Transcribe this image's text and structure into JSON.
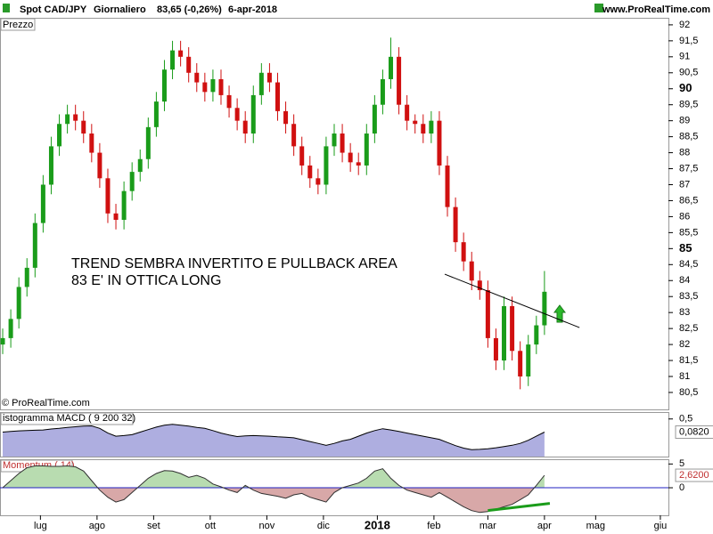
{
  "header": {
    "symbol": "Spot CAD/JPY",
    "period": "Giornaliero",
    "quote": "83,65 (-0,26%)",
    "date": "6-apr-2018",
    "site": "www.ProRealTime.com"
  },
  "chart_data": [
    {
      "type": "candlestick",
      "title": "Prezzo",
      "copyright": "© ProRealTime.com",
      "annotations": [
        "TREND SEMBRA INVERTITO E PULLBACK AREA",
        "83 E' IN OTTICA LONG"
      ],
      "up_color": "#1a9c1a",
      "down_color": "#d01010",
      "x": [
        0,
        3,
        6,
        9,
        12,
        15,
        18,
        21,
        24,
        27,
        30,
        33,
        36,
        39,
        42,
        45,
        48,
        51,
        54,
        57,
        60,
        63,
        66,
        69,
        72,
        75,
        78,
        81,
        84,
        87,
        90,
        93,
        96,
        99,
        102,
        105,
        108,
        111,
        114,
        117,
        120,
        123,
        126,
        129,
        132,
        135,
        138,
        141,
        144,
        147,
        150,
        153,
        156,
        159,
        162,
        165,
        168,
        171,
        174,
        177,
        180,
        183,
        186,
        189,
        192,
        195,
        198,
        201
      ],
      "open": [
        82.0,
        82.2,
        82.8,
        83.8,
        84.4,
        85.8,
        87.0,
        88.2,
        88.9,
        89.2,
        89.0,
        88.6,
        88.0,
        87.2,
        86.1,
        85.9,
        86.8,
        87.4,
        87.8,
        88.8,
        89.6,
        90.6,
        91.2,
        91.0,
        90.5,
        90.2,
        89.9,
        90.3,
        89.8,
        89.4,
        89.0,
        88.6,
        89.8,
        90.5,
        90.2,
        89.3,
        88.9,
        88.2,
        87.6,
        87.2,
        87.0,
        88.2,
        88.6,
        88.0,
        87.7,
        87.6,
        88.6,
        89.5,
        90.3,
        91.0,
        89.5,
        89.0,
        88.9,
        88.6,
        89.0,
        87.6,
        86.3,
        85.2,
        84.6,
        84.0,
        83.7,
        82.2,
        81.5,
        83.2,
        81.8,
        81.0,
        82.0,
        82.6
      ],
      "close": [
        82.2,
        82.8,
        83.8,
        84.4,
        85.8,
        87.0,
        88.2,
        88.9,
        89.2,
        89.0,
        88.6,
        88.0,
        87.2,
        86.1,
        85.9,
        86.8,
        87.4,
        87.8,
        88.8,
        89.6,
        90.6,
        91.2,
        91.0,
        90.5,
        90.2,
        89.9,
        90.3,
        89.8,
        89.4,
        89.0,
        88.6,
        89.8,
        90.5,
        90.2,
        89.3,
        88.9,
        88.2,
        87.6,
        87.2,
        87.0,
        88.2,
        88.6,
        88.0,
        87.7,
        87.6,
        88.6,
        89.5,
        90.3,
        91.0,
        89.5,
        89.0,
        88.9,
        88.6,
        89.0,
        87.6,
        86.3,
        85.2,
        84.6,
        84.0,
        83.7,
        82.2,
        81.5,
        83.2,
        81.8,
        81.0,
        82.0,
        82.6,
        83.65
      ],
      "high": [
        82.5,
        83.1,
        84.1,
        84.7,
        86.1,
        87.3,
        88.5,
        89.2,
        89.5,
        89.5,
        89.3,
        88.9,
        88.3,
        87.5,
        86.4,
        87.1,
        87.7,
        88.1,
        89.1,
        89.9,
        90.9,
        91.5,
        91.5,
        91.3,
        90.8,
        90.5,
        90.6,
        90.6,
        90.1,
        89.7,
        89.3,
        90.1,
        90.8,
        90.8,
        90.5,
        89.6,
        89.2,
        88.5,
        87.9,
        87.5,
        88.5,
        88.9,
        88.9,
        88.3,
        88.0,
        88.9,
        89.8,
        90.6,
        91.6,
        91.3,
        89.8,
        89.2,
        89.2,
        89.3,
        89.3,
        87.9,
        86.6,
        85.5,
        84.9,
        84.3,
        84.0,
        82.5,
        83.5,
        83.5,
        82.1,
        82.3,
        82.9,
        84.3
      ],
      "low": [
        81.7,
        81.9,
        82.5,
        83.5,
        84.1,
        85.5,
        86.7,
        87.9,
        88.6,
        88.7,
        88.3,
        87.7,
        86.9,
        85.8,
        85.6,
        85.6,
        86.5,
        87.1,
        87.5,
        88.5,
        89.3,
        90.3,
        90.7,
        90.2,
        89.9,
        89.6,
        89.6,
        89.5,
        89.1,
        88.7,
        88.3,
        88.3,
        89.5,
        89.9,
        89.0,
        88.6,
        87.9,
        87.3,
        86.9,
        86.7,
        86.7,
        87.9,
        87.7,
        87.4,
        87.3,
        87.3,
        88.3,
        89.2,
        90.0,
        89.2,
        88.7,
        88.6,
        88.3,
        88.3,
        87.3,
        86.0,
        84.9,
        84.3,
        83.7,
        83.4,
        81.9,
        81.2,
        81.2,
        81.5,
        80.6,
        80.7,
        81.7,
        82.3
      ],
      "trendline": {
        "x": [
          164,
          214
        ],
        "y": [
          84.2,
          82.53
        ]
      },
      "xlim": [
        -1,
        247
      ],
      "xticks": [
        {
          "value": 14,
          "label": "lug"
        },
        {
          "value": 35,
          "label": "ago"
        },
        {
          "value": 56,
          "label": "set"
        },
        {
          "value": 77,
          "label": "ott"
        },
        {
          "value": 98,
          "label": "nov"
        },
        {
          "value": 119,
          "label": "dic"
        },
        139,
        {
          "value": 160,
          "label": "feb"
        },
        {
          "value": 180,
          "label": "mar"
        },
        {
          "value": 201,
          "label": "apr"
        },
        {
          "value": 220,
          "label": "mag"
        },
        {
          "value": 244,
          "label": "giu"
        }
      ],
      "xtick_labels": {
        "139": "2018"
      },
      "ylim": [
        79.97,
        92.22
      ],
      "yticks": [
        {
          "value": 80.5,
          "label": "80,5"
        },
        81,
        {
          "value": 81.5,
          "label": "81,5"
        },
        82,
        {
          "value": 82.5,
          "label": "82,5"
        },
        83,
        {
          "value": 83.5,
          "label": "83,5"
        },
        84,
        {
          "value": 84.5,
          "label": "84,5"
        },
        85,
        {
          "value": 85.5,
          "label": "85,5"
        },
        86,
        {
          "value": 86.5,
          "label": "86,5"
        },
        87,
        {
          "value": 87.5,
          "label": "87,5"
        },
        88,
        {
          "value": 88.5,
          "label": "88,5"
        },
        89,
        {
          "value": 89.5,
          "label": "89,5"
        },
        90,
        {
          "value": 90.5,
          "label": "90,5"
        },
        91,
        {
          "value": 91.5,
          "label": "91,5"
        },
        92
      ]
    },
    {
      "type": "area",
      "title": "istogramma MACD ( 9 200 32)",
      "color": "#9a9ad8",
      "line_color": "#000000",
      "x": [
        0,
        3,
        6,
        9,
        12,
        15,
        18,
        21,
        24,
        27,
        30,
        33,
        36,
        39,
        42,
        45,
        48,
        51,
        54,
        57,
        60,
        63,
        66,
        69,
        72,
        75,
        78,
        81,
        84,
        87,
        90,
        93,
        96,
        99,
        102,
        105,
        108,
        111,
        114,
        117,
        120,
        123,
        126,
        129,
        132,
        135,
        138,
        141,
        144,
        147,
        150,
        153,
        156,
        159,
        162,
        165,
        168,
        171,
        174,
        177,
        180,
        183,
        186,
        189,
        192,
        195,
        198,
        201
      ],
      "values": [
        0.08,
        0.1,
        0.12,
        0.13,
        0.14,
        0.15,
        0.18,
        0.2,
        0.23,
        0.25,
        0.27,
        0.28,
        0.2,
        0.05,
        -0.05,
        -0.03,
        0.0,
        0.08,
        0.16,
        0.24,
        0.3,
        0.33,
        0.3,
        0.27,
        0.23,
        0.2,
        0.13,
        0.05,
        -0.01,
        -0.06,
        -0.04,
        -0.03,
        -0.04,
        -0.05,
        -0.07,
        -0.08,
        -0.1,
        -0.16,
        -0.22,
        -0.28,
        -0.34,
        -0.28,
        -0.2,
        -0.15,
        -0.05,
        0.05,
        0.13,
        0.19,
        0.15,
        0.1,
        0.05,
        0.0,
        -0.05,
        -0.1,
        -0.15,
        -0.25,
        -0.35,
        -0.43,
        -0.48,
        -0.47,
        -0.45,
        -0.42,
        -0.38,
        -0.34,
        -0.28,
        -0.18,
        -0.05,
        0.082
      ],
      "last_label": {
        "value": 0.082,
        "label": "0,0820"
      },
      "ylim": [
        -0.7,
        0.72
      ],
      "yticks": [
        {
          "value": 0.5,
          "label": "0,5"
        }
      ]
    },
    {
      "type": "momentum",
      "title": "Momentum ( 14)",
      "up_color": "#b8dcb0",
      "down_color": "#d8a8a8",
      "zero_color": "#2020c0",
      "line_color": "#303030",
      "x": [
        0,
        3,
        6,
        9,
        12,
        15,
        18,
        21,
        24,
        27,
        30,
        33,
        36,
        39,
        42,
        45,
        48,
        51,
        54,
        57,
        60,
        63,
        66,
        69,
        72,
        75,
        78,
        81,
        84,
        87,
        90,
        93,
        96,
        99,
        102,
        105,
        108,
        111,
        114,
        117,
        120,
        123,
        126,
        129,
        132,
        135,
        138,
        141,
        144,
        147,
        150,
        153,
        156,
        159,
        162,
        165,
        168,
        171,
        174,
        177,
        180,
        183,
        186,
        189,
        192,
        195,
        198,
        201
      ],
      "values": [
        0,
        1.5,
        3,
        4.2,
        4.6,
        4.6,
        4.5,
        4.5,
        4.6,
        4.4,
        3.5,
        1.5,
        -0.5,
        -2,
        -3,
        -2.5,
        -1,
        0.5,
        2,
        3,
        3.6,
        3.5,
        3,
        2.2,
        2.6,
        2,
        0.8,
        0.2,
        -0.5,
        -1,
        0.5,
        -0.5,
        -1.2,
        -1.5,
        -1.8,
        -2.2,
        -1.5,
        -1.2,
        -2,
        -2.5,
        -3,
        -1,
        0,
        0.5,
        1,
        2,
        3.5,
        4,
        2,
        0.5,
        -0.5,
        -1,
        -1.5,
        -2,
        -1,
        -2,
        -3,
        -4,
        -4.8,
        -5.2,
        -5,
        -4.5,
        -4,
        -3.5,
        -2.5,
        -1.5,
        0.5,
        2.62
      ],
      "last_label": {
        "value": 2.62,
        "label": "2,6200"
      },
      "trendline": {
        "x": [
          180,
          203
        ],
        "y": [
          -4.8,
          -3.3
        ],
        "color": "#1a9c1a"
      },
      "ylim": [
        -5.8,
        6
      ],
      "yticks": [
        5,
        0
      ]
    }
  ]
}
